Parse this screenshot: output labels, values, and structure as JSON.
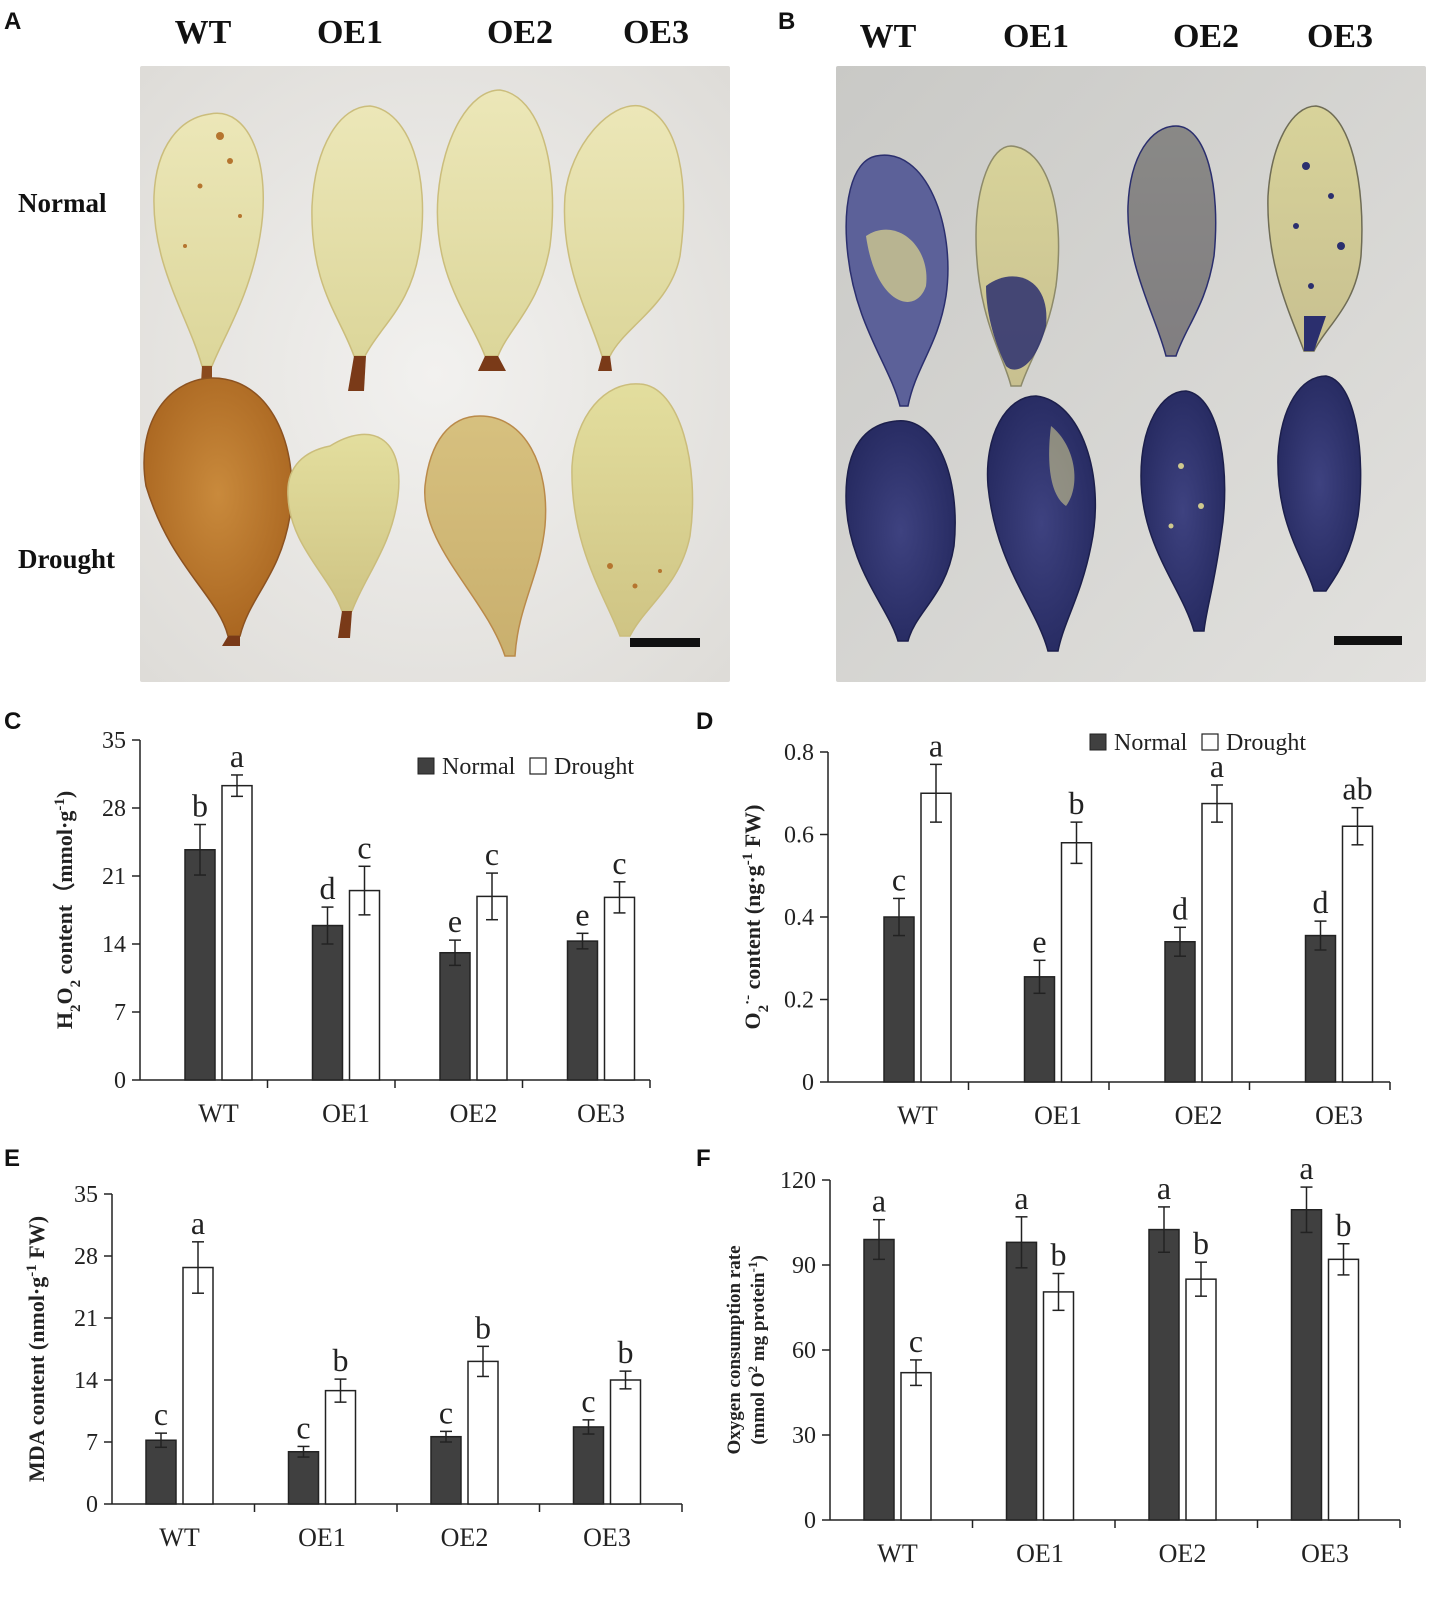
{
  "panel_letters": [
    "A",
    "B",
    "C",
    "D",
    "E",
    "F"
  ],
  "photo_a": {
    "columns": [
      "WT",
      "OE1",
      "OE2",
      "OE3"
    ],
    "rows": [
      "Normal",
      "Drought"
    ]
  },
  "photo_b": {
    "columns": [
      "WT",
      "OE1",
      "OE2",
      "OE3"
    ]
  },
  "colors": {
    "normal_bar": "#404040",
    "drought_bar": "#ffffff",
    "dab_stain": "#b8722a",
    "nbt_stain": "#2b2f6e",
    "leaf": "#e8e3a8"
  },
  "chart_data": [
    {
      "panel": "C",
      "type": "bar",
      "categories": [
        "WT",
        "OE1",
        "OE2",
        "OE3"
      ],
      "ylabel_parts": [
        "H",
        "2",
        "O",
        "2",
        " content（mmol·g",
        "-1",
        ")"
      ],
      "ylim": [
        0,
        35
      ],
      "yticks": [
        "0",
        "7",
        "14",
        "21",
        "28",
        "35"
      ],
      "legend": [
        "Normal",
        "Drought"
      ],
      "legend_position": "top-right",
      "series": [
        {
          "name": "Normal",
          "values": [
            23.7,
            15.9,
            13.1,
            14.3
          ],
          "errors": [
            2.6,
            1.9,
            1.3,
            0.8
          ],
          "letters": [
            "b",
            "d",
            "e",
            "e"
          ]
        },
        {
          "name": "Drought",
          "values": [
            30.3,
            19.5,
            18.9,
            18.8
          ],
          "errors": [
            1.1,
            2.5,
            2.4,
            1.6
          ],
          "letters": [
            "a",
            "c",
            "c",
            "c"
          ]
        }
      ]
    },
    {
      "panel": "D",
      "type": "bar",
      "categories": [
        "WT",
        "OE1",
        "OE2",
        "OE3"
      ],
      "ylabel_parts": [
        "O",
        "2",
        "·-",
        " content (ng·g",
        "-1",
        " FW)"
      ],
      "ylim": [
        0,
        0.8
      ],
      "yticks": [
        "0",
        "0.2",
        "0.4",
        "0.6",
        "0.8"
      ],
      "legend": [
        "Normal",
        "Drought"
      ],
      "legend_position": "top-right",
      "series": [
        {
          "name": "Normal",
          "values": [
            0.4,
            0.255,
            0.34,
            0.355
          ],
          "errors": [
            0.045,
            0.04,
            0.035,
            0.035
          ],
          "letters": [
            "c",
            "e",
            "d",
            "d"
          ]
        },
        {
          "name": "Drought",
          "values": [
            0.7,
            0.58,
            0.675,
            0.62
          ],
          "errors": [
            0.07,
            0.05,
            0.045,
            0.045
          ],
          "letters": [
            "a",
            "b",
            "a",
            "ab"
          ]
        }
      ]
    },
    {
      "panel": "E",
      "type": "bar",
      "categories": [
        "WT",
        "OE1",
        "OE2",
        "OE3"
      ],
      "ylabel_parts": [
        "MDA content (nmol·g",
        "-1",
        " FW)"
      ],
      "ylim": [
        0,
        35
      ],
      "yticks": [
        "0",
        "7",
        "14",
        "21",
        "28",
        "35"
      ],
      "series": [
        {
          "name": "Normal",
          "values": [
            7.2,
            5.9,
            7.6,
            8.7
          ],
          "errors": [
            0.8,
            0.6,
            0.6,
            0.8
          ],
          "letters": [
            "c",
            "c",
            "c",
            "c"
          ]
        },
        {
          "name": "Drought",
          "values": [
            26.7,
            12.8,
            16.1,
            14.0
          ],
          "errors": [
            2.9,
            1.3,
            1.7,
            1.0
          ],
          "letters": [
            "a",
            "b",
            "b",
            "b"
          ]
        }
      ]
    },
    {
      "panel": "F",
      "type": "bar",
      "categories": [
        "WT",
        "OE1",
        "OE2",
        "OE3"
      ],
      "ylabel_line1": "Oxygen consumption rate",
      "ylabel_line2_parts": [
        "(mmol O",
        "2",
        " mg protein",
        "-1",
        ")"
      ],
      "ylim": [
        0,
        120
      ],
      "yticks": [
        "0",
        "30",
        "60",
        "90",
        "120"
      ],
      "series": [
        {
          "name": "Normal",
          "values": [
            99,
            98,
            102.5,
            109.5
          ],
          "errors": [
            7,
            9,
            8,
            8
          ],
          "letters": [
            "a",
            "a",
            "a",
            "a"
          ]
        },
        {
          "name": "Drought",
          "values": [
            52,
            80.5,
            85,
            92
          ],
          "errors": [
            4.5,
            6.5,
            6,
            5.5
          ],
          "letters": [
            "c",
            "b",
            "b",
            "b"
          ]
        }
      ]
    }
  ]
}
